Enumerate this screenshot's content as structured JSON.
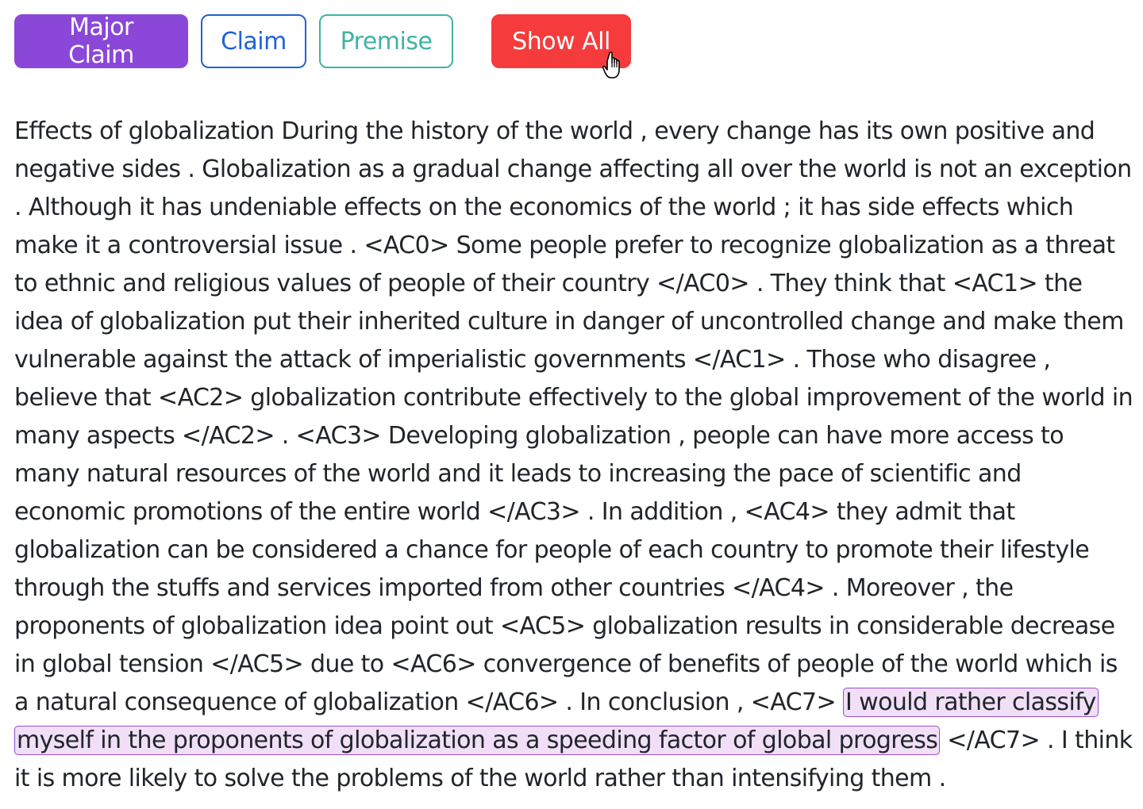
{
  "toolbar": {
    "major_claim_label": "Major Claim",
    "claim_label": "Claim",
    "premise_label": "Premise",
    "show_all_label": "Show All"
  },
  "colors": {
    "major_claim": "#8a47d8",
    "claim": "#1f63d6",
    "premise": "#3fb3a5",
    "show_all": "#f53b3b",
    "highlight_fill": "#f0dff7",
    "highlight_border": "#9a4fd0"
  },
  "icons": {
    "cursor": "hand-pointer-icon"
  },
  "essay": {
    "before_highlight": "Effects of globalization During the history of the world , every change has its own positive and negative sides . Globalization as a gradual change affecting all over the world is not an exception . Although it has undeniable effects on the economics of the world ; it has side effects which make it a controversial issue . <AC0> Some people prefer to recognize globalization as a threat to ethnic and religious values of people of their country </AC0> . They think that <AC1> the idea of globalization put their inherited culture in danger of uncontrolled change and make them vulnerable against the attack of imperialistic governments </AC1> . Those who disagree , believe that <AC2> globalization contribute effectively to the global improvement of the world in many aspects </AC2> . <AC3> Developing globalization , people can have more access to many natural resources of the world and it leads to increasing the pace of scientific and economic promotions of the entire world </AC3> . In addition , <AC4> they admit that globalization can be considered a chance for people of each country to promote their lifestyle through the stuffs and services imported from other countries </AC4> . Moreover , the proponents of globalization idea point out <AC5> globalization results in considerable decrease in global tension </AC5> due to <AC6> convergence of benefits of people of the world which is a natural consequence of globalization </AC6> . In conclusion , <AC7> ",
    "highlight": "I would rather classify myself in the proponents of globalization as a speeding factor of global progress",
    "highlight_type": "Major Claim",
    "after_highlight": " </AC7> . I think it is more likely to solve the problems of the world rather than intensifying them ."
  }
}
